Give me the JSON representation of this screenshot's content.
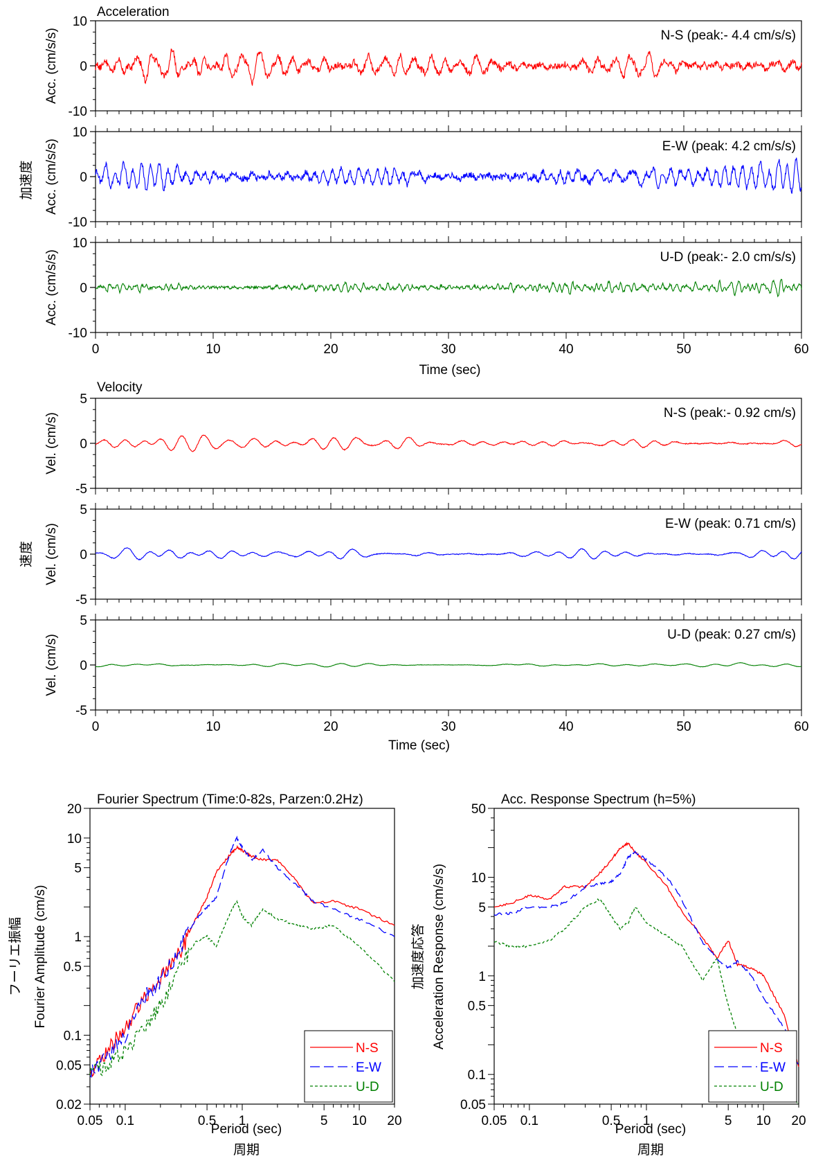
{
  "colors": {
    "ns": "#ff0000",
    "ew": "#0000ff",
    "ud": "#008000"
  },
  "chart_data": [
    {
      "type": "line",
      "title": "Acceleration",
      "group_label": "加速度",
      "xlabel": "Time (sec)",
      "xlim": [
        0,
        60
      ],
      "xticks": [
        0,
        10,
        20,
        30,
        40,
        50,
        60
      ],
      "panels": [
        {
          "component": "N-S",
          "label": "N-S (peak:- 4.4 cm/s/s)",
          "peak": -4.4,
          "ylabel": "Acc. (cm/s/s)",
          "ylim": [
            -10,
            10
          ],
          "yticks": [
            -10,
            0,
            10
          ],
          "color": "ns"
        },
        {
          "component": "E-W",
          "label": "E-W (peak: 4.2 cm/s/s)",
          "peak": 4.2,
          "ylabel": "Acc. (cm/s/s)",
          "ylim": [
            -10,
            10
          ],
          "yticks": [
            -10,
            0,
            10
          ],
          "color": "ew"
        },
        {
          "component": "U-D",
          "label": "U-D (peak:- 2.0 cm/s/s)",
          "peak": -2.0,
          "ylabel": "Acc. (cm/s/s)",
          "ylim": [
            -10,
            10
          ],
          "yticks": [
            -10,
            0,
            10
          ],
          "color": "ud"
        }
      ]
    },
    {
      "type": "line",
      "title": "Velocity",
      "group_label": "速度",
      "xlabel": "Time (sec)",
      "xlim": [
        0,
        60
      ],
      "xticks": [
        0,
        10,
        20,
        30,
        40,
        50,
        60
      ],
      "panels": [
        {
          "component": "N-S",
          "label": "N-S (peak:- 0.92 cm/s)",
          "peak": -0.92,
          "ylabel": "Vel. (cm/s)",
          "ylim": [
            -5,
            5
          ],
          "yticks": [
            -5,
            0,
            5
          ],
          "color": "ns"
        },
        {
          "component": "E-W",
          "label": "E-W (peak: 0.71 cm/s)",
          "peak": 0.71,
          "ylabel": "Vel. (cm/s)",
          "ylim": [
            -5,
            5
          ],
          "yticks": [
            -5,
            0,
            5
          ],
          "color": "ew"
        },
        {
          "component": "U-D",
          "label": "U-D (peak: 0.27 cm/s)",
          "peak": 0.27,
          "ylabel": "Vel. (cm/s)",
          "ylim": [
            -5,
            5
          ],
          "yticks": [
            -5,
            0,
            5
          ],
          "color": "ud"
        }
      ]
    },
    {
      "type": "line",
      "scale": "log-log",
      "title": "Fourier Spectrum (Time:0-82s, Parzen:0.2Hz)",
      "xlabel": "Period (sec)",
      "xlabel_ja": "周期",
      "ylabel": "Fourier Amplitude (cm/s)",
      "ylabel_ja": "フーリエ振幅",
      "xlim": [
        0.05,
        20
      ],
      "ylim": [
        0.02,
        20
      ],
      "xtick_labels": [
        "0.05",
        "0.1",
        "0.5",
        "1",
        "5",
        "10",
        "20"
      ],
      "ytick_labels": [
        "0.02",
        "0.05",
        "0.1",
        "0.5",
        "1",
        "5",
        "10",
        "20"
      ],
      "legend": "bottom-right",
      "series": [
        {
          "name": "N-S",
          "color": "ns",
          "dash": "solid",
          "x": [
            0.05,
            0.07,
            0.1,
            0.15,
            0.2,
            0.3,
            0.4,
            0.5,
            0.6,
            0.8,
            0.9,
            1.0,
            1.2,
            1.5,
            2.0,
            3.0,
            4.0,
            6.0,
            10,
            20
          ],
          "y": [
            0.04,
            0.07,
            0.12,
            0.25,
            0.4,
            0.7,
            1.5,
            2.5,
            4.5,
            7.0,
            8.0,
            7.5,
            6.5,
            6.0,
            6.0,
            3.5,
            2.2,
            2.3,
            1.9,
            1.3
          ]
        },
        {
          "name": "E-W",
          "color": "ew",
          "dash": "dashed",
          "x": [
            0.05,
            0.07,
            0.1,
            0.15,
            0.2,
            0.3,
            0.4,
            0.5,
            0.6,
            0.8,
            0.9,
            1.0,
            1.2,
            1.5,
            2.0,
            3.0,
            4.0,
            6.0,
            10,
            20
          ],
          "y": [
            0.04,
            0.06,
            0.1,
            0.25,
            0.35,
            0.8,
            1.5,
            2.0,
            2.5,
            7.5,
            10,
            8.0,
            6.0,
            7.5,
            5.0,
            3.2,
            2.3,
            1.9,
            1.5,
            1.0
          ]
        },
        {
          "name": "U-D",
          "color": "ud",
          "dash": "dotted",
          "x": [
            0.05,
            0.07,
            0.1,
            0.15,
            0.2,
            0.3,
            0.4,
            0.5,
            0.6,
            0.8,
            0.9,
            1.0,
            1.2,
            1.5,
            2.0,
            3.0,
            4.0,
            6.0,
            10,
            20
          ],
          "y": [
            0.04,
            0.05,
            0.07,
            0.12,
            0.2,
            0.5,
            0.9,
            1.0,
            0.8,
            1.8,
            2.3,
            1.6,
            1.3,
            1.9,
            1.5,
            1.3,
            1.2,
            1.3,
            0.8,
            0.35
          ]
        }
      ]
    },
    {
      "type": "line",
      "scale": "log-log",
      "title": "Acc. Response Spectrum (h=5%)",
      "xlabel": "Period (sec)",
      "xlabel_ja": "周期",
      "ylabel": "Acceleration Response (cm/s/s)",
      "ylabel_ja": "加速度応答",
      "xlim": [
        0.05,
        20
      ],
      "ylim": [
        0.05,
        50
      ],
      "xtick_labels": [
        "0.05",
        "0.1",
        "0.5",
        "1",
        "5",
        "10",
        "20"
      ],
      "ytick_labels": [
        "0.05",
        "0.1",
        "0.5",
        "1",
        "5",
        "10",
        "50"
      ],
      "legend": "bottom-right",
      "series": [
        {
          "name": "N-S",
          "color": "ns",
          "dash": "solid",
          "x": [
            0.05,
            0.07,
            0.1,
            0.15,
            0.2,
            0.3,
            0.4,
            0.5,
            0.6,
            0.7,
            0.8,
            1.0,
            1.5,
            2.0,
            3.0,
            4.0,
            5.0,
            6.0,
            8.0,
            10,
            15,
            20
          ],
          "y": [
            5.0,
            5.5,
            6.5,
            6.0,
            8.0,
            8.0,
            11,
            15,
            20,
            22,
            18,
            14,
            8.0,
            4.5,
            2.5,
            1.5,
            2.3,
            1.3,
            1.2,
            1.0,
            0.4,
            0.12
          ]
        },
        {
          "name": "E-W",
          "color": "ew",
          "dash": "dashed",
          "x": [
            0.05,
            0.07,
            0.1,
            0.15,
            0.2,
            0.3,
            0.4,
            0.5,
            0.6,
            0.7,
            0.8,
            1.0,
            1.5,
            2.0,
            3.0,
            4.0,
            5.0,
            6.0,
            8.0,
            10,
            15,
            20
          ],
          "y": [
            4.2,
            4.3,
            5.0,
            5.0,
            5.5,
            8.0,
            8.5,
            9.0,
            11,
            16,
            18,
            15,
            10,
            6.0,
            2.2,
            1.5,
            1.2,
            1.4,
            1.0,
            0.6,
            0.3,
            0.12
          ]
        },
        {
          "name": "U-D",
          "color": "ud",
          "dash": "dotted",
          "x": [
            0.05,
            0.07,
            0.1,
            0.15,
            0.2,
            0.3,
            0.4,
            0.5,
            0.6,
            0.7,
            0.8,
            1.0,
            1.5,
            2.0,
            3.0,
            4.0,
            5.0,
            6.0,
            8.0,
            10,
            15,
            20
          ],
          "y": [
            2.2,
            2.0,
            2.0,
            2.3,
            3.0,
            5.0,
            6.0,
            4.0,
            3.0,
            3.5,
            5.0,
            3.5,
            2.5,
            2.0,
            0.9,
            1.5,
            0.5,
            0.25,
            0.15,
            0.1,
            0.07,
            0.05
          ]
        }
      ]
    }
  ]
}
